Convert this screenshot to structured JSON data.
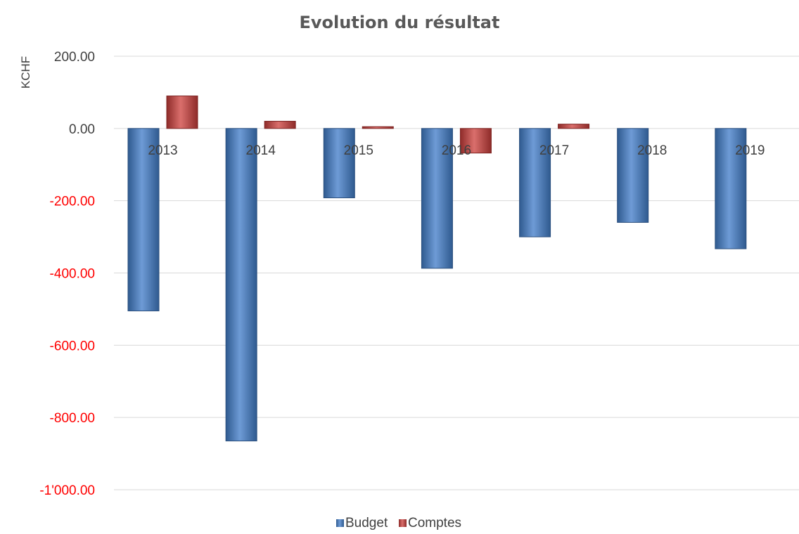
{
  "chart_data": {
    "type": "bar",
    "title": "Evolution du résultat",
    "ylabel": "KCHF",
    "xlabel": "",
    "categories": [
      "2013",
      "2014",
      "2015",
      "2016",
      "2017",
      "2018",
      "2019"
    ],
    "series": [
      {
        "name": "Budget",
        "values": [
          -505,
          -865,
          -192,
          -387,
          -300,
          -260,
          -333
        ]
      },
      {
        "name": "Comptes",
        "values": [
          90,
          20,
          5,
          -68,
          12,
          null,
          null
        ]
      }
    ],
    "yticks": [
      "200.00",
      "0.00",
      "-200.00",
      "-400.00",
      "-600.00",
      "-800.00",
      "-1'000.00"
    ],
    "ylim": [
      -1000,
      200
    ],
    "grid": true,
    "legend": "bottom",
    "colors": {
      "budget": "#4F81BD",
      "comptes": "#C0504D",
      "negative_tick": "#FF0000",
      "positive_tick": "#404040",
      "grid": "#D9D9D9"
    }
  }
}
